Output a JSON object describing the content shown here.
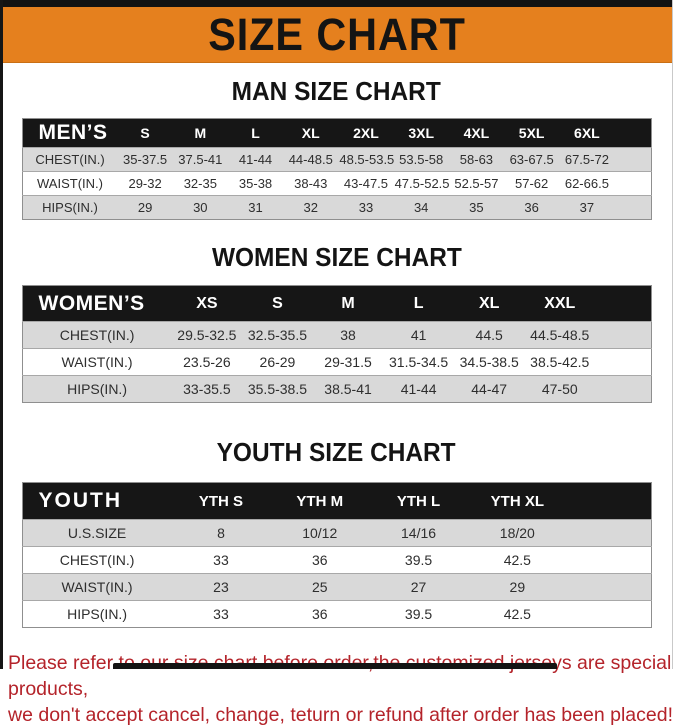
{
  "banner": {
    "title": "SIZE CHART"
  },
  "colors": {
    "banner_bg": "#E5801E",
    "header_row_bg": "#161616",
    "stripe_row_bg": "#D9D9D9",
    "footer_text": "#B4232A"
  },
  "sections": [
    {
      "title": "MAN SIZE CHART",
      "header_label": "MEN’S",
      "columns": [
        "S",
        "M",
        "L",
        "XL",
        "2XL",
        "3XL",
        "4XL",
        "5XL",
        "6XL"
      ],
      "rows": [
        {
          "label": "CHEST(IN.)",
          "values": [
            "35-37.5",
            "37.5-41",
            "41-44",
            "44-48.5",
            "48.5-53.5",
            "53.5-58",
            "58-63",
            "63-67.5",
            "67.5-72"
          ]
        },
        {
          "label": "WAIST(IN.)",
          "values": [
            "29-32",
            "32-35",
            "35-38",
            "38-43",
            "43-47.5",
            "47.5-52.5",
            "52.5-57",
            "57-62",
            "62-66.5"
          ]
        },
        {
          "label": "HIPS(IN.)",
          "values": [
            "29",
            "30",
            "31",
            "32",
            "33",
            "34",
            "35",
            "36",
            "37"
          ]
        }
      ]
    },
    {
      "title": "WOMEN SIZE CHART",
      "header_label": "WOMEN’S",
      "columns": [
        "XS",
        "S",
        "M",
        "L",
        "XL",
        "XXL"
      ],
      "rows": [
        {
          "label": "CHEST(IN.)",
          "values": [
            "29.5-32.5",
            "32.5-35.5",
            "38",
            "41",
            "44.5",
            "44.5-48.5"
          ]
        },
        {
          "label": "WAIST(IN.)",
          "values": [
            "23.5-26",
            "26-29",
            "29-31.5",
            "31.5-34.5",
            "34.5-38.5",
            "38.5-42.5"
          ]
        },
        {
          "label": "HIPS(IN.)",
          "values": [
            "33-35.5",
            "35.5-38.5",
            "38.5-41",
            "41-44",
            "44-47",
            "47-50"
          ]
        }
      ]
    },
    {
      "title": "YOUTH SIZE CHART",
      "header_label": "YOUTH",
      "columns": [
        "YTH S",
        "YTH M",
        "YTH L",
        "YTH XL"
      ],
      "rows": [
        {
          "label": "U.S.SIZE",
          "values": [
            "8",
            "10/12",
            "14/16",
            "18/20"
          ]
        },
        {
          "label": "CHEST(IN.)",
          "values": [
            "33",
            "36",
            "39.5",
            "42.5"
          ]
        },
        {
          "label": "WAIST(IN.)",
          "values": [
            "23",
            "25",
            "27",
            "29"
          ]
        },
        {
          "label": "HIPS(IN.)",
          "values": [
            "33",
            "36",
            "39.5",
            "42.5"
          ]
        }
      ]
    }
  ],
  "footer": {
    "line1": "Please refer to our size chart before order,the customized jerseys are special products,",
    "line2": "we don't accept cancel, change, teturn or refund after order has been placed!"
  }
}
